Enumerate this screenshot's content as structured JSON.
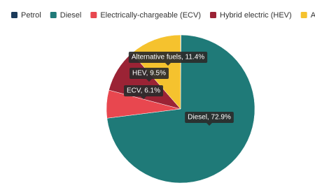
{
  "chart_data": {
    "type": "pie",
    "categories": [
      "Petrol",
      "Diesel",
      "Electrically-chargeable (ECV)",
      "Hybrid electric (HEV)",
      "Alternative fuels"
    ],
    "values": [
      0.1,
      72.9,
      6.1,
      9.5,
      11.4
    ],
    "value_labels": [
      null,
      "Diesel, 72.9%",
      "ECV, 6.1%",
      "HEV, 9.5%",
      "Alternative fuels, 11.4%"
    ],
    "colors": [
      "#1b3a5a",
      "#1f7a78",
      "#e8474f",
      "#9b2335",
      "#f5c22e"
    ],
    "legend": "top"
  }
}
